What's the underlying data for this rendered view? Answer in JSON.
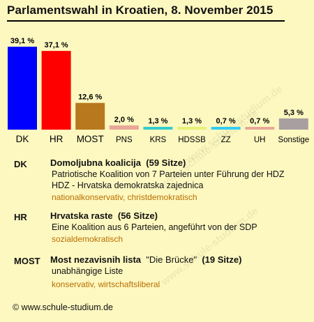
{
  "title": "Parlamentswahl in Kroatien, 8. November 2015",
  "chart_data": {
    "type": "bar",
    "categories": [
      "DK",
      "HR",
      "MOST",
      "PNS",
      "KRS",
      "HDSSB",
      "ZZ",
      "UH",
      "Sonstige"
    ],
    "values": [
      39.1,
      37.1,
      12.6,
      2.0,
      1.3,
      1.3,
      0.7,
      0.7,
      5.3
    ],
    "value_labels": [
      "39,1 %",
      "37,1 %",
      "12,6 %",
      "2,0 %",
      "1,3 %",
      "1,3 %",
      "0,7 %",
      "0,7 %",
      "5,3 %"
    ],
    "colors": [
      "#0000ff",
      "#ff0000",
      "#b8781e",
      "#e8a898",
      "#33cccc",
      "#e6f078",
      "#33ccf0",
      "#e8a898",
      "#a8a0a0"
    ],
    "title": "Parlamentswahl in Kroatien, 8. November 2015",
    "xlabel": "",
    "ylabel": "",
    "ylim": [
      0,
      39.1
    ],
    "grid": false,
    "legend": "none"
  },
  "parties": [
    {
      "abbr": "DK",
      "name": "Domoljubna koalicija",
      "name_quote": "",
      "seats": "(59 Sitze)",
      "lines": [
        "Patriotische Koalition von 7 Parteien unter Führung der HDZ",
        "HDZ  - Hrvatska demokratska zajednica"
      ],
      "orientation": "nationalkonservativ, christdemokratisch"
    },
    {
      "abbr": "HR",
      "name": "Hrvatska raste",
      "name_quote": "",
      "seats": "(56 Sitze)",
      "lines": [
        "Eine Koalition aus 6 Parteien, angeführt von der SDP"
      ],
      "orientation": "sozialdemokratisch"
    },
    {
      "abbr": "MOST",
      "name": "Most nezavisnih lista",
      "name_quote": "\"Die Brücke\"",
      "seats": "(19 Sitze)",
      "lines": [
        "unabhängige Liste"
      ],
      "orientation": "konservativ, wirtschaftsliberal"
    }
  ],
  "footer": "© www.schule-studium.de",
  "watermark": "www.schule-studium.de"
}
